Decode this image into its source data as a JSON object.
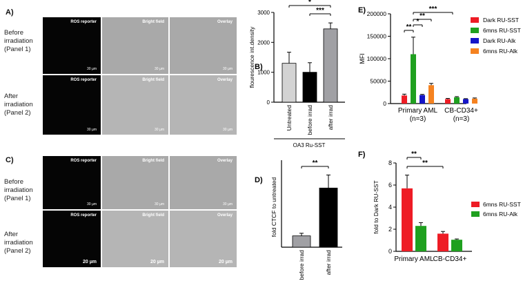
{
  "panel_A": {
    "label": "A)",
    "row1_label": "Before irradiation (Panel 1)",
    "row2_label": "After irradiation (Panel 2)",
    "captions": [
      "ROS reporter",
      "Bright field",
      "Overlay"
    ],
    "scalebar": "30 µm"
  },
  "panel_C": {
    "label": "C)",
    "row1_label": "Before irradiation (Panel 1)",
    "row2_label": "After irradiation (Panel 2)",
    "captions": [
      "ROS reporter",
      "Bright field",
      "Overlay"
    ],
    "scalebar": "20 µm",
    "scalebar_small": "30 µm"
  },
  "chart_data": [
    {
      "id": "B",
      "panel_label": "B)",
      "type": "bar",
      "categories": [
        "Untreated",
        "before irrad",
        "after irrad"
      ],
      "values": [
        1300,
        1000,
        2450
      ],
      "errors": [
        370,
        320,
        200
      ],
      "colors": [
        "#d3d3d3",
        "#000000",
        "#a0a0a4"
      ],
      "ylabel": "flourescence int.density",
      "ylim": [
        0,
        3000
      ],
      "yticks": [
        0,
        1000,
        2000,
        3000
      ],
      "group_label": "OA3 Ru-SST",
      "significance": [
        {
          "from": 0,
          "to": 2,
          "label": "*"
        },
        {
          "from": 1,
          "to": 2,
          "label": "***"
        }
      ]
    },
    {
      "id": "D",
      "panel_label": "D)",
      "type": "bar",
      "categories": [
        "before irrad",
        "after irrad"
      ],
      "values": [
        0.65,
        3.4
      ],
      "errors": [
        0.15,
        0.75
      ],
      "colors": [
        "#a0a0a4",
        "#000000"
      ],
      "ylabel": "fold CTCF to untreated",
      "ylim": [
        0,
        5
      ],
      "significance": [
        {
          "from": 0,
          "to": 1,
          "label": "**"
        }
      ]
    },
    {
      "id": "E",
      "panel_label": "E)",
      "type": "bar",
      "groups": [
        "Primary AML",
        "CB-CD34+"
      ],
      "group_sublabels": [
        "(n=3)",
        "(n=3)"
      ],
      "ylabel": "MFI",
      "ylim": [
        0,
        200000
      ],
      "yticks": [
        0,
        50000,
        100000,
        150000,
        200000
      ],
      "ytick_labels": [
        "0",
        "50000",
        "100000",
        "150000",
        "200000"
      ],
      "series": [
        {
          "name": "Dark RU-SST",
          "color": "#ee1c25",
          "values": [
            18000,
            10000
          ],
          "errors": [
            3000,
            1500
          ]
        },
        {
          "name": "6mns RU-SST",
          "color": "#1fa01f",
          "values": [
            110000,
            14000
          ],
          "errors": [
            38000,
            1500
          ]
        },
        {
          "name": "Dark RU-Alk",
          "color": "#1515c8",
          "values": [
            19000,
            10000
          ],
          "errors": [
            1500,
            1000
          ]
        },
        {
          "name": "6mns RU-Alk",
          "color": "#f58220",
          "values": [
            41000,
            11000
          ],
          "errors": [
            4000,
            1500
          ]
        }
      ],
      "significance": [
        {
          "label": "**"
        },
        {
          "label": "*"
        },
        {
          "label": "**"
        },
        {
          "label": "***"
        }
      ]
    },
    {
      "id": "F",
      "panel_label": "F)",
      "type": "bar",
      "groups": [
        "Primary AML",
        "CB-CD34+"
      ],
      "ylabel": "fold to Dark RU-SST",
      "ylim": [
        0,
        8
      ],
      "yticks": [
        0,
        2,
        4,
        6,
        8
      ],
      "ytick_labels": [
        "0",
        "2",
        "4",
        "6",
        "8"
      ],
      "series": [
        {
          "name": "6mns RU-SST",
          "color": "#ee1c25",
          "values": [
            5.7,
            1.6
          ],
          "errors": [
            1.2,
            0.2
          ]
        },
        {
          "name": "6mns RU-Alk",
          "color": "#1fa01f",
          "values": [
            2.3,
            1.05
          ],
          "errors": [
            0.3,
            0.07
          ]
        }
      ],
      "significance": [
        {
          "label": "**"
        },
        {
          "label": "**"
        }
      ]
    }
  ]
}
